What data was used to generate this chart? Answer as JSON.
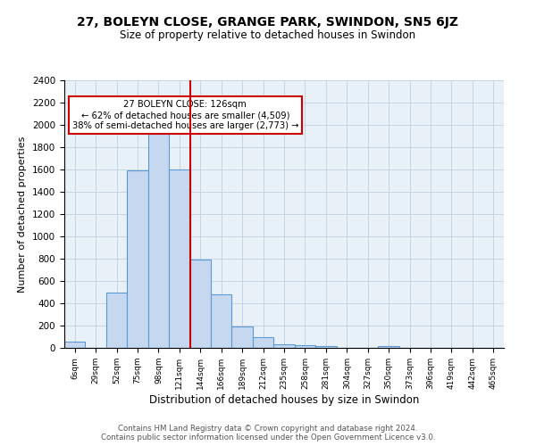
{
  "title1": "27, BOLEYN CLOSE, GRANGE PARK, SWINDON, SN5 6JZ",
  "title2": "Size of property relative to detached houses in Swindon",
  "xlabel": "Distribution of detached houses by size in Swindon",
  "ylabel": "Number of detached properties",
  "categories": [
    "6sqm",
    "29sqm",
    "52sqm",
    "75sqm",
    "98sqm",
    "121sqm",
    "144sqm",
    "166sqm",
    "189sqm",
    "212sqm",
    "235sqm",
    "258sqm",
    "281sqm",
    "304sqm",
    "327sqm",
    "350sqm",
    "373sqm",
    "396sqm",
    "419sqm",
    "442sqm",
    "465sqm"
  ],
  "values": [
    60,
    0,
    500,
    1590,
    1950,
    1600,
    790,
    480,
    195,
    95,
    35,
    28,
    18,
    0,
    0,
    20,
    0,
    0,
    0,
    0,
    0
  ],
  "bar_color": "#c5d8f0",
  "bar_edge_color": "#5b9bd5",
  "vline_x": 5.5,
  "vline_color": "#cc0000",
  "annotation_text": "27 BOLEYN CLOSE: 126sqm\n← 62% of detached houses are smaller (4,509)\n38% of semi-detached houses are larger (2,773) →",
  "annotation_box_color": "white",
  "annotation_box_edge": "#cc0000",
  "ylim": [
    0,
    2400
  ],
  "yticks": [
    0,
    200,
    400,
    600,
    800,
    1000,
    1200,
    1400,
    1600,
    1800,
    2000,
    2200,
    2400
  ],
  "grid_color": "#c0d0e0",
  "bg_color": "#e8f0f8",
  "footer1": "Contains HM Land Registry data © Crown copyright and database right 2024.",
  "footer2": "Contains public sector information licensed under the Open Government Licence v3.0."
}
